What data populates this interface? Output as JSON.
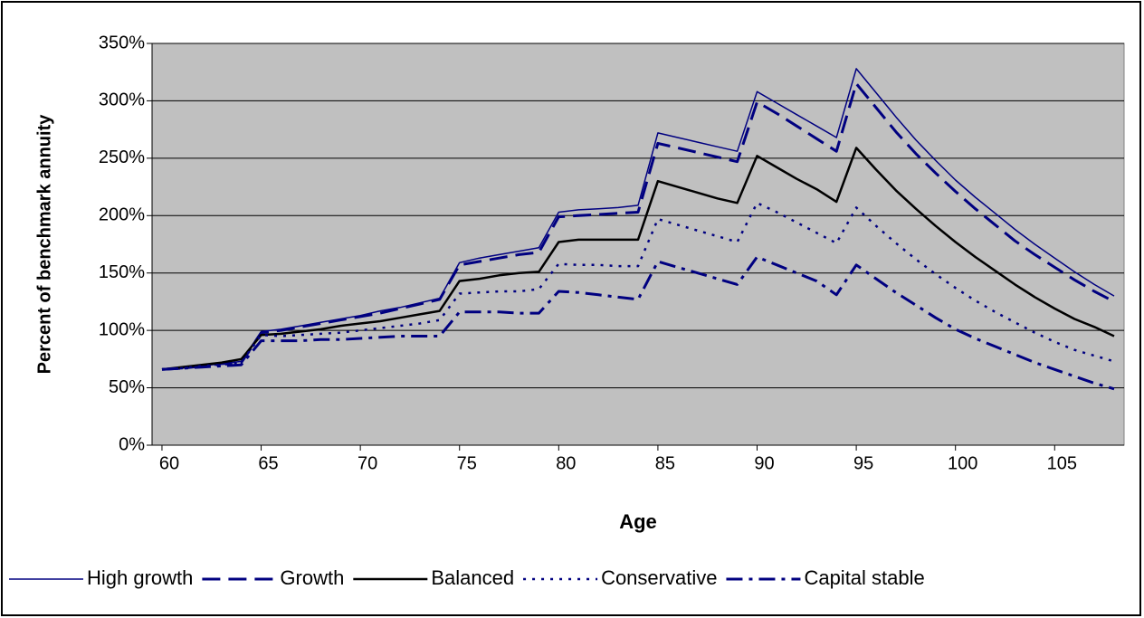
{
  "chart_data": {
    "type": "line",
    "x_label": "Age",
    "y_label": "Percent of benchmark annuity",
    "x": [
      60,
      61,
      62,
      63,
      64,
      65,
      66,
      67,
      68,
      69,
      70,
      71,
      72,
      73,
      74,
      75,
      76,
      77,
      78,
      79,
      80,
      81,
      82,
      83,
      84,
      85,
      86,
      87,
      88,
      89,
      90,
      91,
      92,
      93,
      94,
      95,
      96,
      97,
      98,
      99,
      100,
      101,
      102,
      103,
      104,
      105,
      106,
      107,
      108
    ],
    "xlim": [
      59.5,
      108.5
    ],
    "xticks": [
      60,
      65,
      70,
      75,
      80,
      85,
      90,
      95,
      100,
      105
    ],
    "ylim": [
      0,
      350
    ],
    "yticks": [
      {
        "value": 0,
        "label": "0%"
      },
      {
        "value": 50,
        "label": "50%"
      },
      {
        "value": 100,
        "label": "100%"
      },
      {
        "value": 150,
        "label": "150%"
      },
      {
        "value": 200,
        "label": "200%"
      },
      {
        "value": 250,
        "label": "250%"
      },
      {
        "value": 300,
        "label": "300%"
      },
      {
        "value": 350,
        "label": "350%"
      }
    ],
    "grid": true,
    "legend": "bottom",
    "series": [
      {
        "name": "High growth",
        "color": "#000080",
        "values": [
          66,
          67,
          69,
          71,
          73,
          99,
          101,
          104,
          107,
          110,
          113,
          117,
          120,
          124,
          128,
          159,
          163,
          166,
          169,
          172,
          203,
          205,
          206,
          207,
          209,
          272,
          268,
          264,
          260,
          256,
          308,
          298,
          288,
          278,
          268,
          328,
          307,
          286,
          266,
          248,
          231,
          216,
          202,
          188,
          175,
          163,
          151,
          140,
          130
        ]
      },
      {
        "name": "Growth",
        "color": "#000080",
        "values": [
          66,
          67,
          69,
          71,
          72,
          98,
          100,
          103,
          106,
          109,
          112,
          115,
          119,
          123,
          127,
          157,
          160,
          163,
          166,
          168,
          199,
          200,
          201,
          202,
          203,
          263,
          259,
          255,
          251,
          247,
          299,
          289,
          278,
          267,
          256,
          315,
          294,
          273,
          254,
          237,
          221,
          206,
          192,
          178,
          166,
          155,
          144,
          134,
          125
        ]
      },
      {
        "name": "Balanced",
        "color": "#000000",
        "values": [
          66,
          68,
          70,
          72,
          75,
          96,
          97,
          99,
          101,
          104,
          106,
          108,
          111,
          114,
          117,
          143,
          145,
          148,
          150,
          151,
          177,
          179,
          179,
          179,
          179,
          230,
          225,
          220,
          215,
          211,
          252,
          242,
          232,
          223,
          212,
          259,
          240,
          222,
          206,
          191,
          177,
          164,
          152,
          140,
          129,
          119,
          110,
          103,
          95
        ]
      },
      {
        "name": "Conservative",
        "color": "#000080",
        "values": [
          66,
          67,
          69,
          70,
          72,
          96,
          95,
          96,
          97,
          98,
          100,
          102,
          104,
          106,
          109,
          132,
          133,
          134,
          134,
          136,
          158,
          157,
          157,
          156,
          156,
          197,
          192,
          187,
          182,
          177,
          211,
          203,
          194,
          185,
          176,
          207,
          191,
          176,
          162,
          149,
          137,
          126,
          116,
          107,
          98,
          90,
          83,
          78,
          73
        ]
      },
      {
        "name": "Capital stable",
        "color": "#000080",
        "values": [
          66,
          67,
          68,
          69,
          70,
          91,
          91,
          91,
          92,
          92,
          93,
          94,
          95,
          95,
          95,
          116,
          116,
          116,
          115,
          115,
          134,
          133,
          131,
          129,
          127,
          160,
          155,
          150,
          145,
          140,
          164,
          157,
          150,
          143,
          131,
          157,
          145,
          133,
          122,
          111,
          101,
          93,
          86,
          79,
          72,
          66,
          60,
          54,
          49
        ]
      }
    ]
  }
}
